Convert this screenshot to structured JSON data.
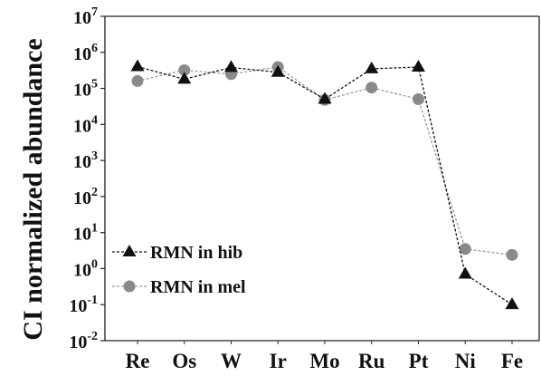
{
  "chart_data": {
    "type": "line",
    "title": "",
    "ylabel": "CI normalized abundance",
    "xlabel": "",
    "categories": [
      "Re",
      "Os",
      "W",
      "Ir",
      "Mo",
      "Ru",
      "Pt",
      "Ni",
      "Fe"
    ],
    "y_scale": "log",
    "ylim_exponents": [
      -2,
      7
    ],
    "y_ticks": [
      {
        "base": "10",
        "exp": "7"
      },
      {
        "base": "10",
        "exp": "6"
      },
      {
        "base": "10",
        "exp": "5"
      },
      {
        "base": "10",
        "exp": "4"
      },
      {
        "base": "10",
        "exp": "3"
      },
      {
        "base": "10",
        "exp": "2"
      },
      {
        "base": "10",
        "exp": "1"
      },
      {
        "base": "10",
        "exp": "0"
      },
      {
        "base": "10",
        "exp": "-1"
      },
      {
        "base": "10",
        "exp": "-2"
      }
    ],
    "grid": false,
    "legend_position": "lower-left",
    "series": [
      {
        "name": "RMN in hib",
        "marker": "triangle",
        "color": "#111111",
        "line_color": "#111111",
        "values": [
          400000,
          180000,
          380000,
          280000,
          50000,
          350000,
          390000,
          0.7,
          0.1
        ]
      },
      {
        "name": "RMN in mel",
        "marker": "circle",
        "color": "#8a8a8a",
        "line_color": "#9a9a9a",
        "values": [
          160000,
          320000,
          250000,
          390000,
          48000,
          105000,
          50000,
          3.5,
          2.4
        ]
      }
    ]
  }
}
